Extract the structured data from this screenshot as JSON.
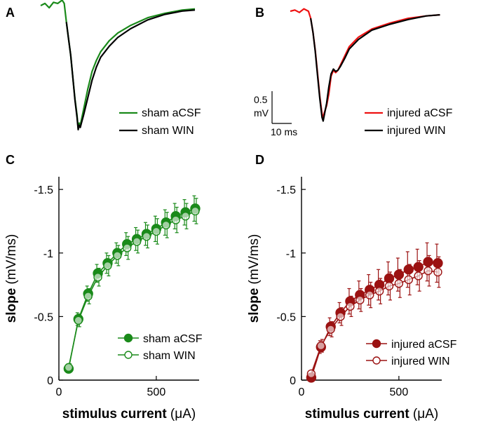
{
  "figure": {
    "panels": {
      "A": "A",
      "B": "B",
      "C": "C",
      "D": "D"
    },
    "scale_bar": {
      "vertical_value": "0.5",
      "vertical_unit": "mV",
      "horizontal_label": "10 ms"
    }
  },
  "colors": {
    "sham": "#1a8a1a",
    "injured_trace": "#ee1111",
    "injured_points": "#9b1212",
    "win_trace": "#000000"
  },
  "chart_data": [
    {
      "panel": "A",
      "type": "line",
      "series": [
        {
          "name": "sham aCSF",
          "color": "#1a8a1a",
          "points": [
            [
              0,
              0.0
            ],
            [
              2,
              0.02
            ],
            [
              4,
              -0.02
            ],
            [
              6,
              0.03
            ],
            [
              8,
              0.02
            ],
            [
              10,
              0.05
            ],
            [
              11,
              0.02
            ],
            [
              12,
              -0.15
            ],
            [
              13,
              -0.3
            ],
            [
              14,
              -0.45
            ],
            [
              15,
              -0.65
            ],
            [
              16,
              -0.85
            ],
            [
              17,
              -1.0
            ],
            [
              17.5,
              -1.12
            ],
            [
              18,
              -1.07
            ],
            [
              18.5,
              -1.09
            ],
            [
              19,
              -1.04
            ],
            [
              20,
              -0.95
            ],
            [
              22,
              -0.76
            ],
            [
              24,
              -0.6
            ],
            [
              26,
              -0.5
            ],
            [
              28,
              -0.42
            ],
            [
              32,
              -0.32
            ],
            [
              36,
              -0.25
            ],
            [
              42,
              -0.18
            ],
            [
              50,
              -0.11
            ],
            [
              58,
              -0.07
            ],
            [
              66,
              -0.04
            ],
            [
              72,
              -0.03
            ]
          ]
        },
        {
          "name": "sham WIN",
          "color": "#000000",
          "points": [
            [
              12,
              -0.15
            ],
            [
              13,
              -0.3
            ],
            [
              14,
              -0.45
            ],
            [
              15,
              -0.65
            ],
            [
              16,
              -0.86
            ],
            [
              17,
              -1.02
            ],
            [
              17.5,
              -1.13
            ],
            [
              18,
              -1.09
            ],
            [
              18.5,
              -1.11
            ],
            [
              19,
              -1.07
            ],
            [
              20,
              -1.0
            ],
            [
              22,
              -0.84
            ],
            [
              24,
              -0.68
            ],
            [
              26,
              -0.56
            ],
            [
              28,
              -0.47
            ],
            [
              32,
              -0.37
            ],
            [
              36,
              -0.29
            ],
            [
              42,
              -0.21
            ],
            [
              50,
              -0.13
            ],
            [
              58,
              -0.08
            ],
            [
              66,
              -0.05
            ],
            [
              72,
              -0.04
            ]
          ]
        }
      ],
      "legend": [
        "sham aCSF",
        "sham WIN"
      ],
      "legend_position": "bottom-right"
    },
    {
      "panel": "B",
      "type": "line",
      "series": [
        {
          "name": "injured aCSF",
          "color": "#ee1111",
          "points": [
            [
              0,
              0.0
            ],
            [
              2,
              0.01
            ],
            [
              4,
              -0.01
            ],
            [
              6,
              0.02
            ],
            [
              8,
              0.0
            ],
            [
              9,
              -0.06
            ],
            [
              10,
              -0.18
            ],
            [
              11,
              -0.33
            ],
            [
              12,
              -0.52
            ],
            [
              13,
              -0.72
            ],
            [
              14,
              -0.87
            ],
            [
              14.5,
              -0.9
            ],
            [
              15,
              -0.86
            ],
            [
              16,
              -0.8
            ],
            [
              17,
              -0.7
            ],
            [
              18,
              -0.55
            ],
            [
              19,
              -0.5
            ],
            [
              20,
              -0.52
            ],
            [
              21,
              -0.5
            ],
            [
              22,
              -0.46
            ],
            [
              24,
              -0.38
            ],
            [
              26,
              -0.3
            ],
            [
              30,
              -0.22
            ],
            [
              36,
              -0.15
            ],
            [
              44,
              -0.1
            ],
            [
              52,
              -0.06
            ],
            [
              60,
              -0.04
            ],
            [
              66,
              -0.03
            ]
          ]
        },
        {
          "name": "injured WIN",
          "color": "#000000",
          "points": [
            [
              9,
              -0.06
            ],
            [
              10,
              -0.18
            ],
            [
              11,
              -0.34
            ],
            [
              12,
              -0.54
            ],
            [
              13,
              -0.74
            ],
            [
              14,
              -0.9
            ],
            [
              14.5,
              -0.93
            ],
            [
              15,
              -0.88
            ],
            [
              16,
              -0.78
            ],
            [
              17,
              -0.64
            ],
            [
              18,
              -0.53
            ],
            [
              19,
              -0.49
            ],
            [
              20,
              -0.51
            ],
            [
              21,
              -0.5
            ],
            [
              22,
              -0.47
            ],
            [
              24,
              -0.4
            ],
            [
              26,
              -0.32
            ],
            [
              30,
              -0.24
            ],
            [
              36,
              -0.16
            ],
            [
              44,
              -0.11
            ],
            [
              52,
              -0.07
            ],
            [
              60,
              -0.04
            ],
            [
              66,
              -0.03
            ]
          ]
        }
      ],
      "legend": [
        "injured aCSF",
        "injured WIN"
      ],
      "legend_position": "bottom-right"
    },
    {
      "panel": "C",
      "type": "scatter",
      "x": [
        50,
        100,
        150,
        200,
        250,
        300,
        350,
        400,
        450,
        500,
        550,
        600,
        650,
        700
      ],
      "series": [
        {
          "name": "sham aCSF",
          "marker": "filled-circle",
          "color": "#1a8a1a",
          "values": [
            -0.09,
            -0.48,
            -0.68,
            -0.84,
            -0.92,
            -1.0,
            -1.07,
            -1.11,
            -1.15,
            -1.19,
            -1.24,
            -1.29,
            -1.32,
            -1.35
          ],
          "errors": [
            0.03,
            0.05,
            0.06,
            0.07,
            0.08,
            0.08,
            0.09,
            0.09,
            0.09,
            0.1,
            0.1,
            0.1,
            0.1,
            0.1
          ]
        },
        {
          "name": "sham WIN",
          "marker": "open-circle",
          "color": "#1a8a1a",
          "values": [
            -0.1,
            -0.47,
            -0.66,
            -0.81,
            -0.9,
            -0.98,
            -1.04,
            -1.09,
            -1.13,
            -1.17,
            -1.22,
            -1.26,
            -1.29,
            -1.33
          ],
          "errors": [
            0.03,
            0.05,
            0.06,
            0.07,
            0.08,
            0.08,
            0.09,
            0.09,
            0.09,
            0.1,
            0.1,
            0.1,
            0.1,
            0.1
          ]
        }
      ],
      "xlabel_bold": "stimulus current",
      "xlabel_unit": "(μA)",
      "ylabel_bold": "slope",
      "ylabel_unit": "(mV/ms)",
      "xticks": [
        0,
        500
      ],
      "yticks": [
        0,
        -0.5,
        -1,
        -1.5
      ],
      "ytick_labels": [
        "0",
        "-0.5",
        "-1",
        "-1.5"
      ],
      "xlim": [
        0,
        720
      ],
      "ylim": [
        0,
        -1.6
      ],
      "legend": [
        "sham aCSF",
        "sham WIN"
      ],
      "legend_position": "bottom-right"
    },
    {
      "panel": "D",
      "type": "scatter",
      "x": [
        50,
        100,
        150,
        200,
        250,
        300,
        350,
        400,
        450,
        500,
        550,
        600,
        650,
        700
      ],
      "series": [
        {
          "name": "injured aCSF",
          "marker": "filled-circle",
          "color": "#9b1212",
          "values": [
            -0.02,
            -0.26,
            -0.42,
            -0.53,
            -0.62,
            -0.67,
            -0.71,
            -0.75,
            -0.8,
            -0.83,
            -0.87,
            -0.89,
            -0.93,
            -0.92
          ],
          "errors": [
            0.03,
            0.05,
            0.07,
            0.08,
            0.1,
            0.11,
            0.12,
            0.12,
            0.13,
            0.13,
            0.14,
            0.14,
            0.15,
            0.15
          ]
        },
        {
          "name": "injured WIN",
          "marker": "open-circle",
          "color": "#9b1212",
          "values": [
            -0.05,
            -0.27,
            -0.4,
            -0.5,
            -0.58,
            -0.63,
            -0.67,
            -0.7,
            -0.74,
            -0.76,
            -0.79,
            -0.82,
            -0.86,
            -0.85
          ],
          "errors": [
            0.03,
            0.05,
            0.06,
            0.07,
            0.08,
            0.09,
            0.1,
            0.1,
            0.11,
            0.11,
            0.12,
            0.12,
            0.12,
            0.12
          ]
        }
      ],
      "xlabel_bold": "stimulus current",
      "xlabel_unit": "(μA)",
      "ylabel_bold": "slope",
      "ylabel_unit": "(mV/ms)",
      "xticks": [
        0,
        500
      ],
      "yticks": [
        0,
        -0.5,
        -1,
        -1.5
      ],
      "ytick_labels": [
        "0",
        "-0.5",
        "-1",
        "-1.5"
      ],
      "xlim": [
        0,
        720
      ],
      "ylim": [
        0,
        -1.6
      ],
      "legend": [
        "injured aCSF",
        "injured WIN"
      ],
      "legend_position": "bottom-right"
    }
  ]
}
